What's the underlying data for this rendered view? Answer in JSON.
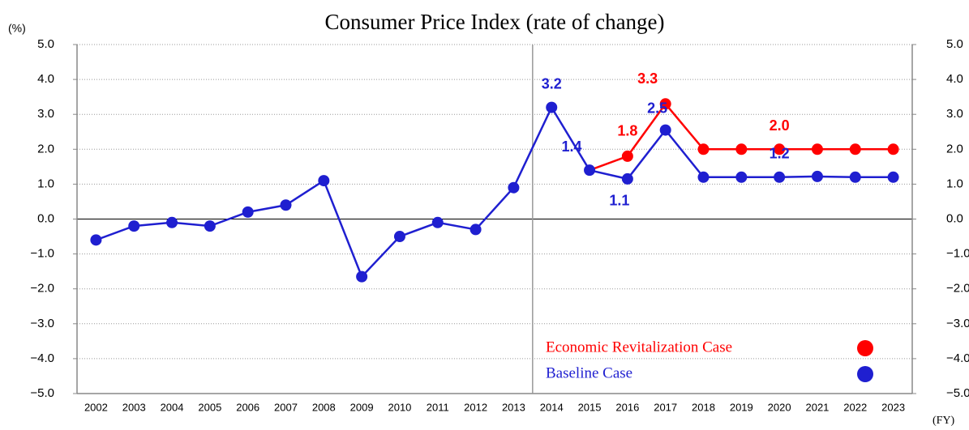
{
  "chart_data": {
    "type": "line",
    "title": "Consumer Price Index (rate of change)",
    "y_label": "(%)",
    "x_label": "(FY)",
    "categories": [
      "2002",
      "2003",
      "2004",
      "2005",
      "2006",
      "2007",
      "2008",
      "2009",
      "2010",
      "2011",
      "2012",
      "2013",
      "2014",
      "2015",
      "2016",
      "2017",
      "2018",
      "2019",
      "2020",
      "2021",
      "2022",
      "2023"
    ],
    "series": [
      {
        "name": "Economic Revitalization Case",
        "color": "#ff0000",
        "values": [
          null,
          null,
          null,
          null,
          null,
          null,
          null,
          null,
          null,
          null,
          null,
          null,
          null,
          1.4,
          1.8,
          3.3,
          2.0,
          2.0,
          2.0,
          2.0,
          2.0,
          2.0
        ],
        "value_labels": [
          null,
          null,
          null,
          null,
          null,
          null,
          null,
          null,
          null,
          null,
          null,
          null,
          null,
          null,
          "1.8",
          "3.3",
          null,
          null,
          "2.0",
          null,
          null,
          null
        ]
      },
      {
        "name": "Baseline Case",
        "color": "#1f1fd0",
        "values": [
          -0.6,
          -0.2,
          -0.1,
          -0.2,
          0.2,
          0.4,
          1.1,
          -1.65,
          -0.5,
          -0.1,
          -0.3,
          0.9,
          3.2,
          1.4,
          1.15,
          2.55,
          1.2,
          1.2,
          1.2,
          1.22,
          1.2,
          1.2
        ],
        "value_labels": [
          null,
          null,
          null,
          null,
          null,
          null,
          null,
          null,
          null,
          null,
          null,
          null,
          "3.2",
          "1.4",
          "1.1",
          "2.5",
          null,
          null,
          "1.2",
          null,
          null,
          null
        ]
      }
    ],
    "ylim": [
      -5,
      5
    ],
    "yticks": [
      {
        "value": -5,
        "label": "−5.0"
      },
      {
        "value": -4,
        "label": "−4.0"
      },
      {
        "value": -3,
        "label": "−3.0"
      },
      {
        "value": -2,
        "label": "−2.0"
      },
      {
        "value": -1,
        "label": "−1.0"
      },
      {
        "value": 0,
        "label": "0.0"
      },
      {
        "value": 1,
        "label": "1.0"
      },
      {
        "value": 2,
        "label": "2.0"
      },
      {
        "value": 3,
        "label": "3.0"
      },
      {
        "value": 4,
        "label": "4.0"
      },
      {
        "value": 5,
        "label": "5.0"
      }
    ],
    "grid": true,
    "legend": "lower right"
  }
}
